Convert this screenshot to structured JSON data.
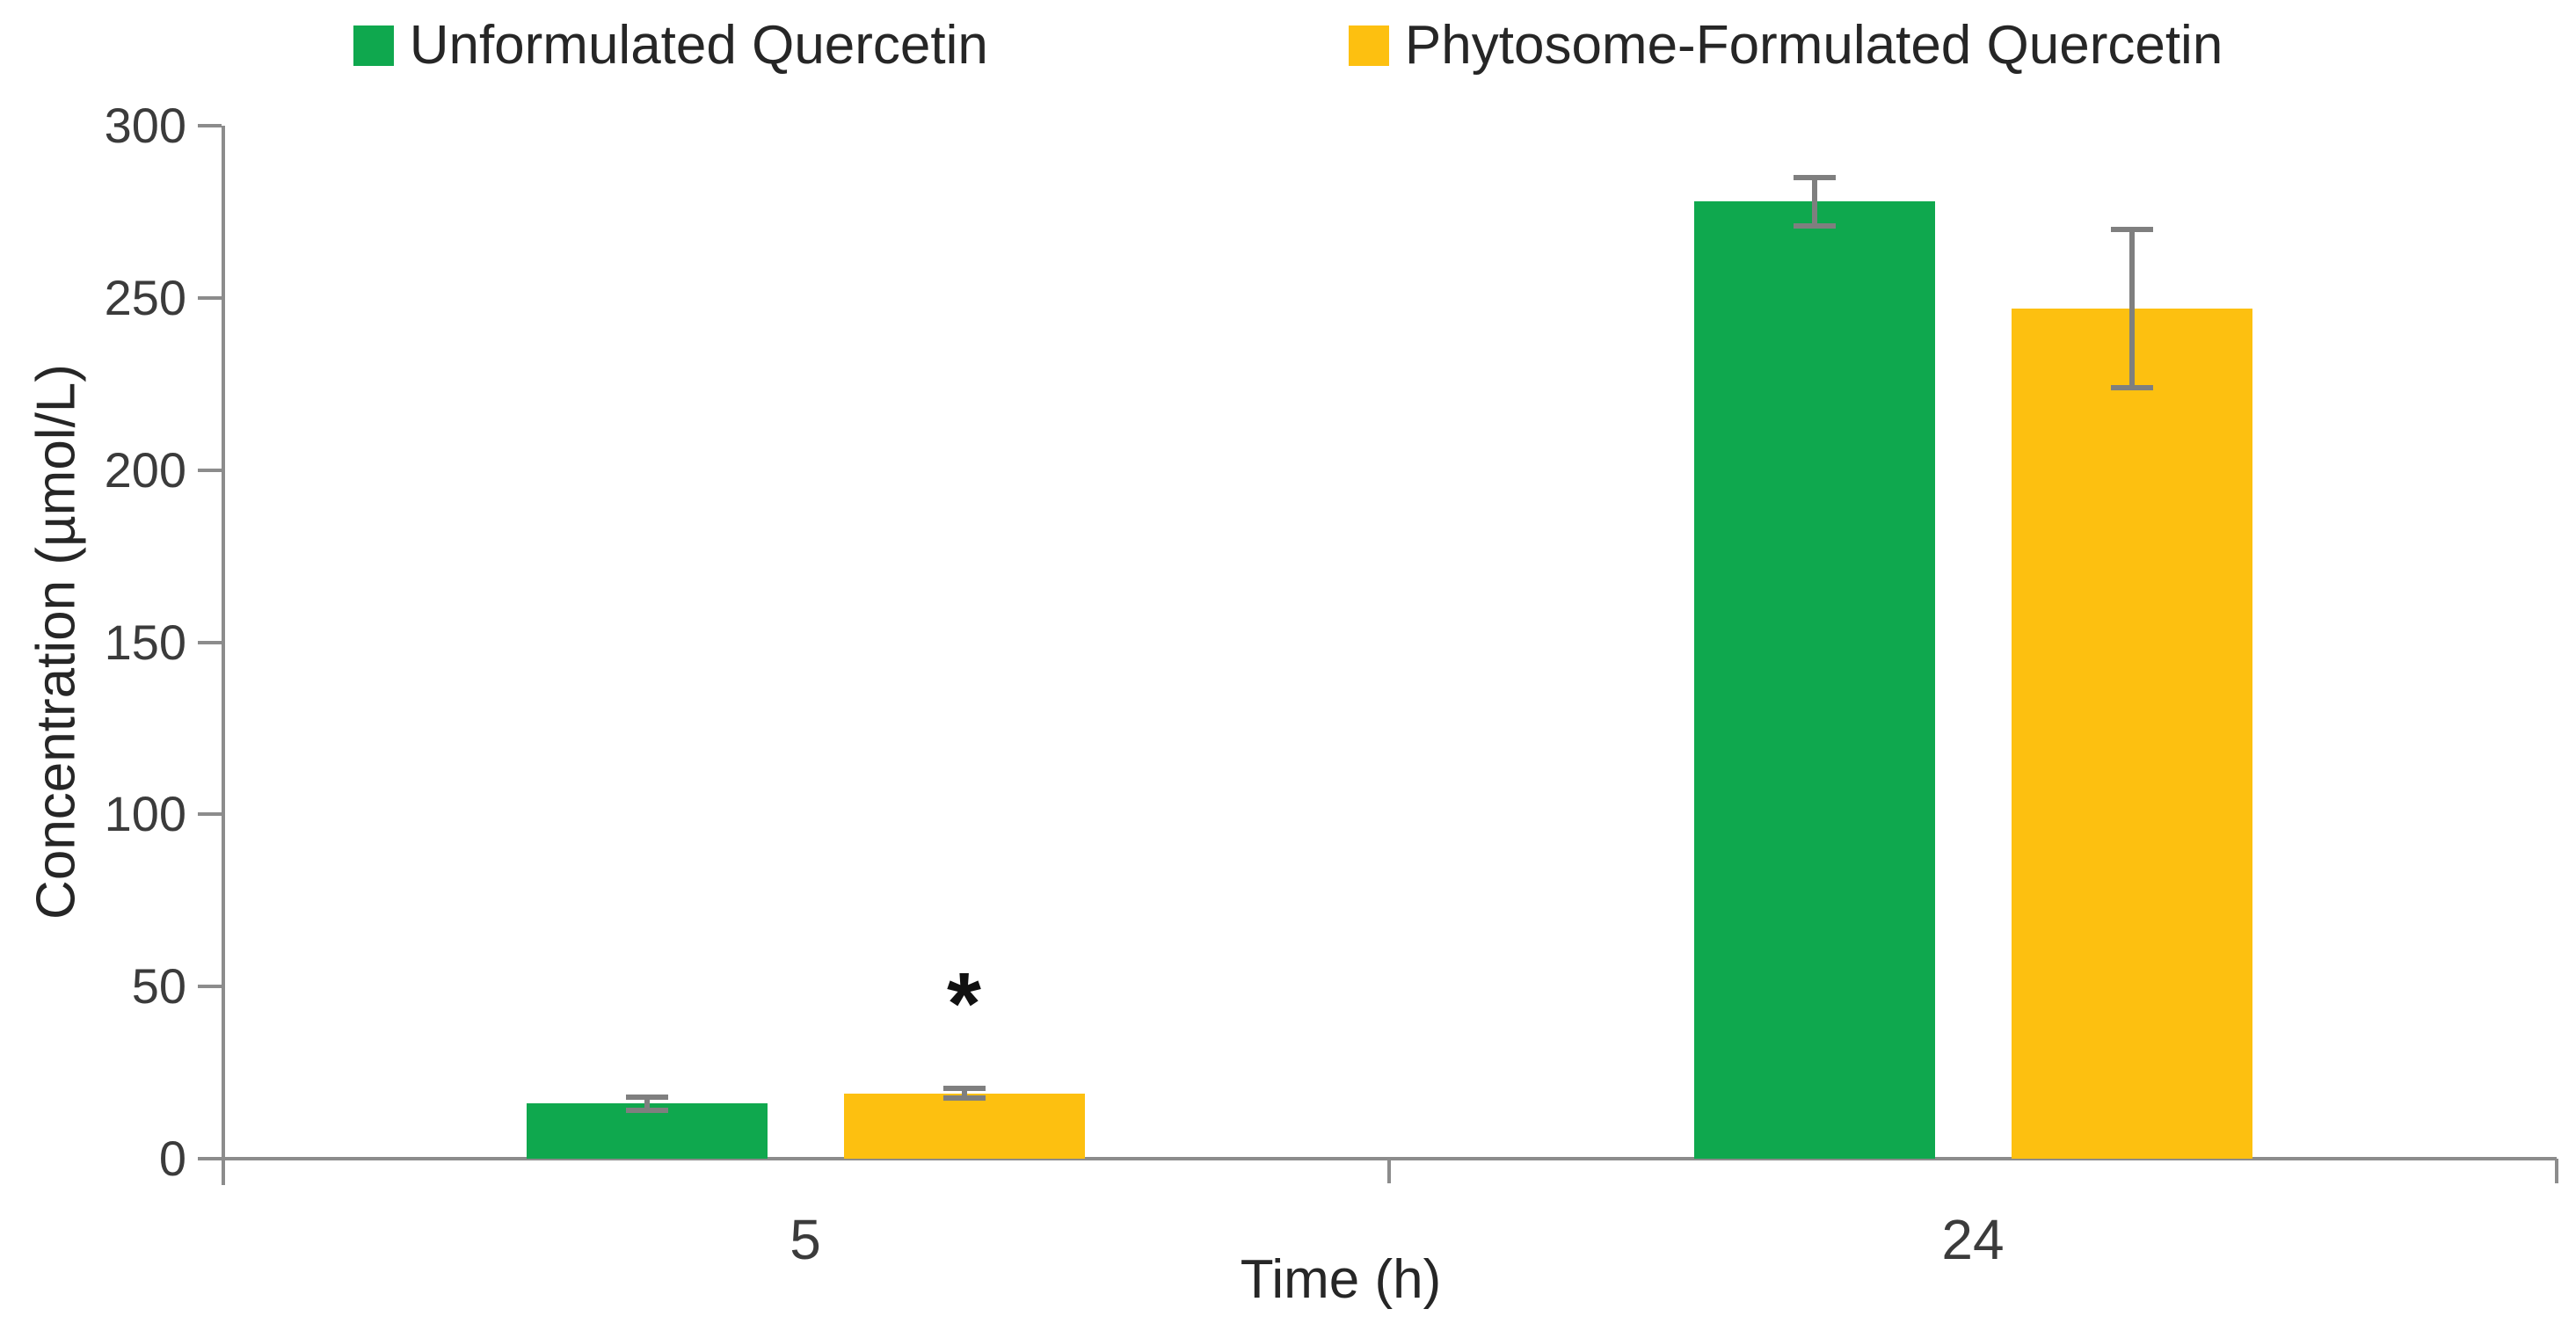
{
  "chart_data": {
    "type": "bar",
    "title": "",
    "categories": [
      "5",
      "24"
    ],
    "series": [
      {
        "name": "Unformulated Quercetin",
        "color": "#0FA84E",
        "values": [
          16,
          278
        ],
        "errors": [
          2,
          7
        ]
      },
      {
        "name": "Phytosome-Formulated Quercetin",
        "color": "#FDC010",
        "values": [
          19,
          247
        ],
        "errors": [
          1.5,
          23
        ]
      }
    ],
    "xlabel": "Time (h)",
    "ylabel": "Concentration (µmol/L)",
    "ylim": [
      0,
      300
    ],
    "ytick_step": 50,
    "yticks": [
      0,
      50,
      100,
      150,
      200,
      250,
      300
    ],
    "grid": false,
    "legend_position": "top",
    "error_bar_color": "#7F7F7F",
    "axis_color": "#8C8C8C",
    "tick_text_color": "#3B3B3B",
    "annotations": [
      {
        "text": "*",
        "category_index": 0,
        "series_index": 1,
        "y": 48
      }
    ]
  }
}
